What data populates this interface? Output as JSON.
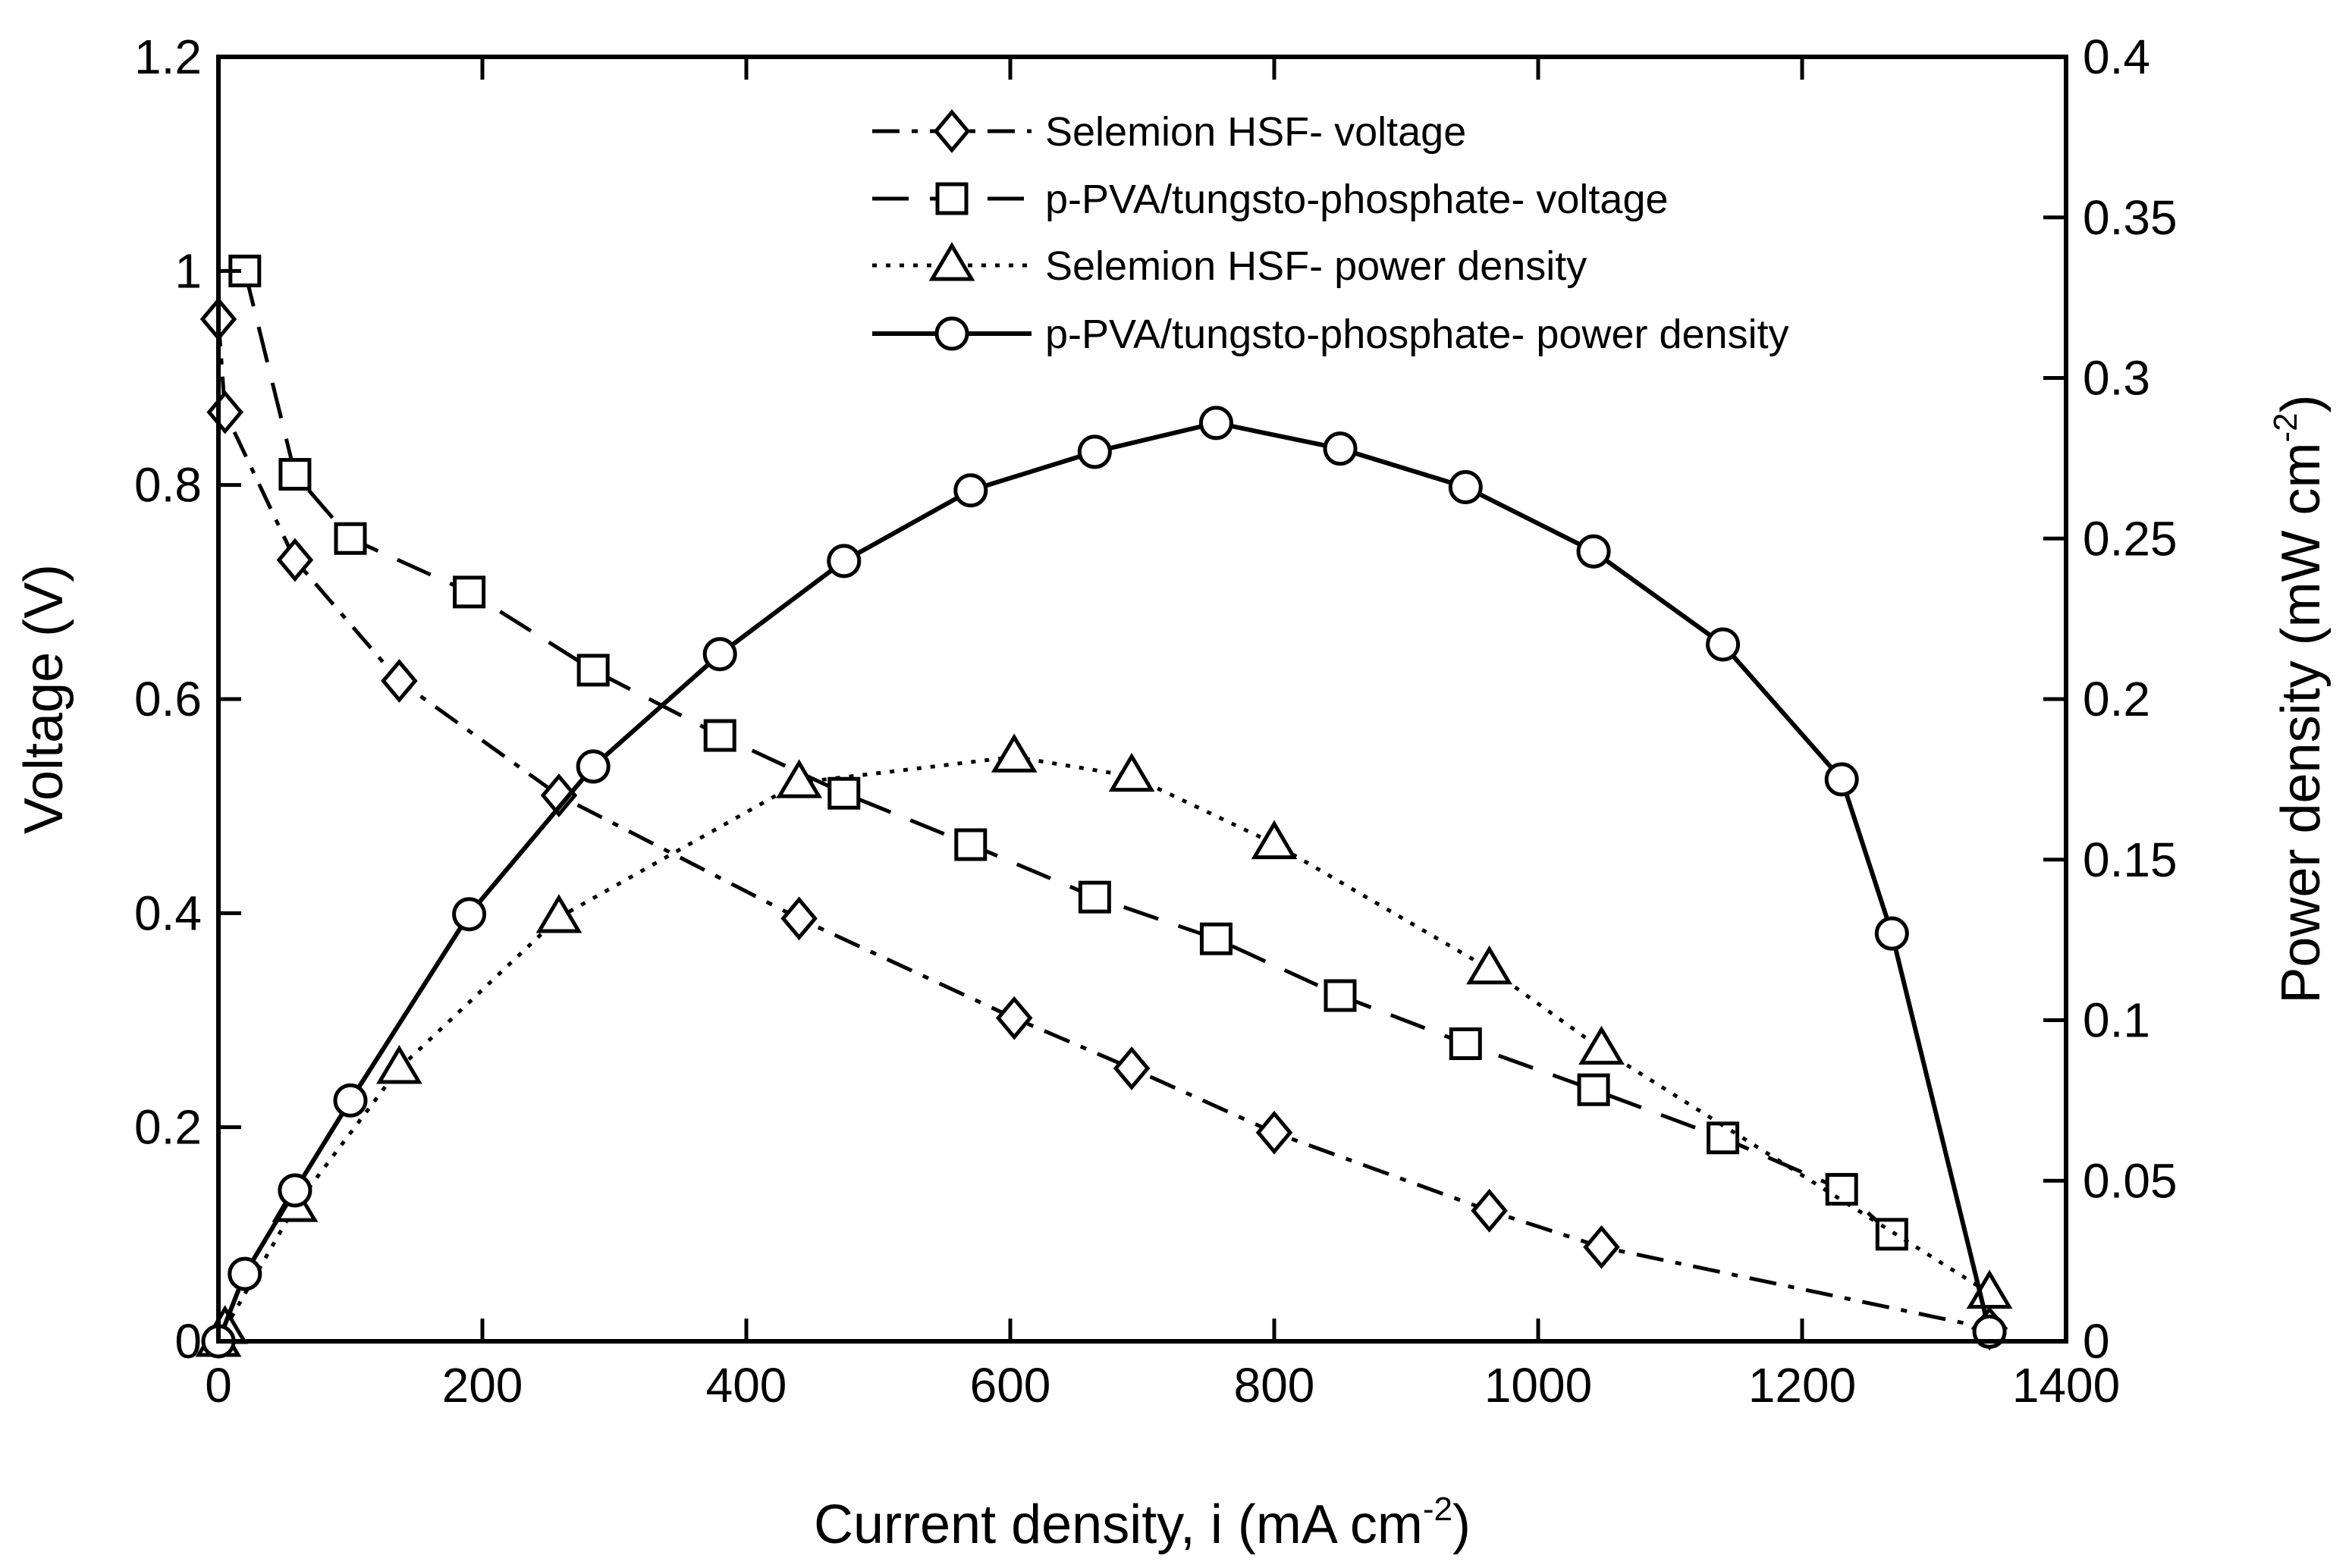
{
  "chart_data": {
    "type": "line",
    "title": "",
    "xlabel": "Current density, i (mA cm",
    "xlabel_sup": "-2",
    "xlabel_suffix": ")",
    "ylabel_left": "Voltage (V)",
    "ylabel_right": "Power density (mW cm",
    "ylabel_right_sup": "-2",
    "ylabel_right_suffix": ")",
    "xlim": [
      0,
      1400
    ],
    "ylim_left": [
      0,
      1.2
    ],
    "ylim_right": [
      0,
      0.4
    ],
    "x_ticks": [
      0,
      200,
      400,
      600,
      800,
      1000,
      1200,
      1400
    ],
    "x_tick_labels": [
      "0",
      "200",
      "400",
      "600",
      "800",
      "1000",
      "1200",
      "1400"
    ],
    "y_left_ticks": [
      0,
      0.2,
      0.4,
      0.6,
      0.8,
      1,
      1.2
    ],
    "y_left_tick_labels": [
      "0",
      "0.2",
      "0.4",
      "0.6",
      "0.8",
      "1",
      "1.2"
    ],
    "y_right_ticks": [
      0,
      0.05,
      0.1,
      0.15,
      0.2,
      0.25,
      0.3,
      0.35,
      0.4
    ],
    "y_right_tick_labels": [
      "0",
      "0.05",
      "0.1",
      "0.15",
      "0.2",
      "0.25",
      "0.3",
      "0.35",
      "0.4"
    ],
    "grid": false,
    "legend_position": "top-center",
    "series": [
      {
        "name": "Selemion HSF- voltage",
        "axis": "left",
        "marker": "diamond",
        "line": "dashdot",
        "x": [
          0,
          5,
          58,
          137,
          258,
          440,
          603,
          692,
          800,
          963,
          1048,
          1342
        ],
        "y": [
          0.955,
          0.868,
          0.73,
          0.617,
          0.51,
          0.395,
          0.302,
          0.255,
          0.195,
          0.122,
          0.088,
          0.012
        ]
      },
      {
        "name": "p-PVA/tungsto-phosphate- voltage",
        "axis": "left",
        "marker": "square",
        "line": "dashed",
        "x": [
          20,
          58,
          100,
          190,
          284,
          380,
          474,
          570,
          664,
          756,
          850,
          945,
          1042,
          1140,
          1230,
          1268
        ],
        "y": [
          1.0,
          0.81,
          0.75,
          0.7,
          0.627,
          0.566,
          0.512,
          0.464,
          0.415,
          0.376,
          0.323,
          0.278,
          0.235,
          0.19,
          0.142,
          0.1
        ]
      },
      {
        "name": "Selemion HSF- power density",
        "axis": "right",
        "marker": "triangle",
        "line": "dotted",
        "x": [
          0,
          5,
          58,
          137,
          258,
          440,
          603,
          692,
          800,
          963,
          1048,
          1342
        ],
        "y": [
          0.0,
          0.004,
          0.042,
          0.085,
          0.132,
          0.174,
          0.182,
          0.176,
          0.155,
          0.116,
          0.091,
          0.015
        ]
      },
      {
        "name": "p-PVA/tungsto-phosphate- power density",
        "axis": "right",
        "marker": "circle",
        "line": "solid",
        "x": [
          0,
          20,
          58,
          100,
          190,
          284,
          380,
          474,
          570,
          664,
          756,
          850,
          945,
          1042,
          1140,
          1230,
          1268,
          1342
        ],
        "y": [
          0.0,
          0.021,
          0.047,
          0.075,
          0.133,
          0.179,
          0.214,
          0.243,
          0.265,
          0.277,
          0.286,
          0.278,
          0.266,
          0.246,
          0.217,
          0.175,
          0.127,
          0.003
        ]
      }
    ]
  }
}
